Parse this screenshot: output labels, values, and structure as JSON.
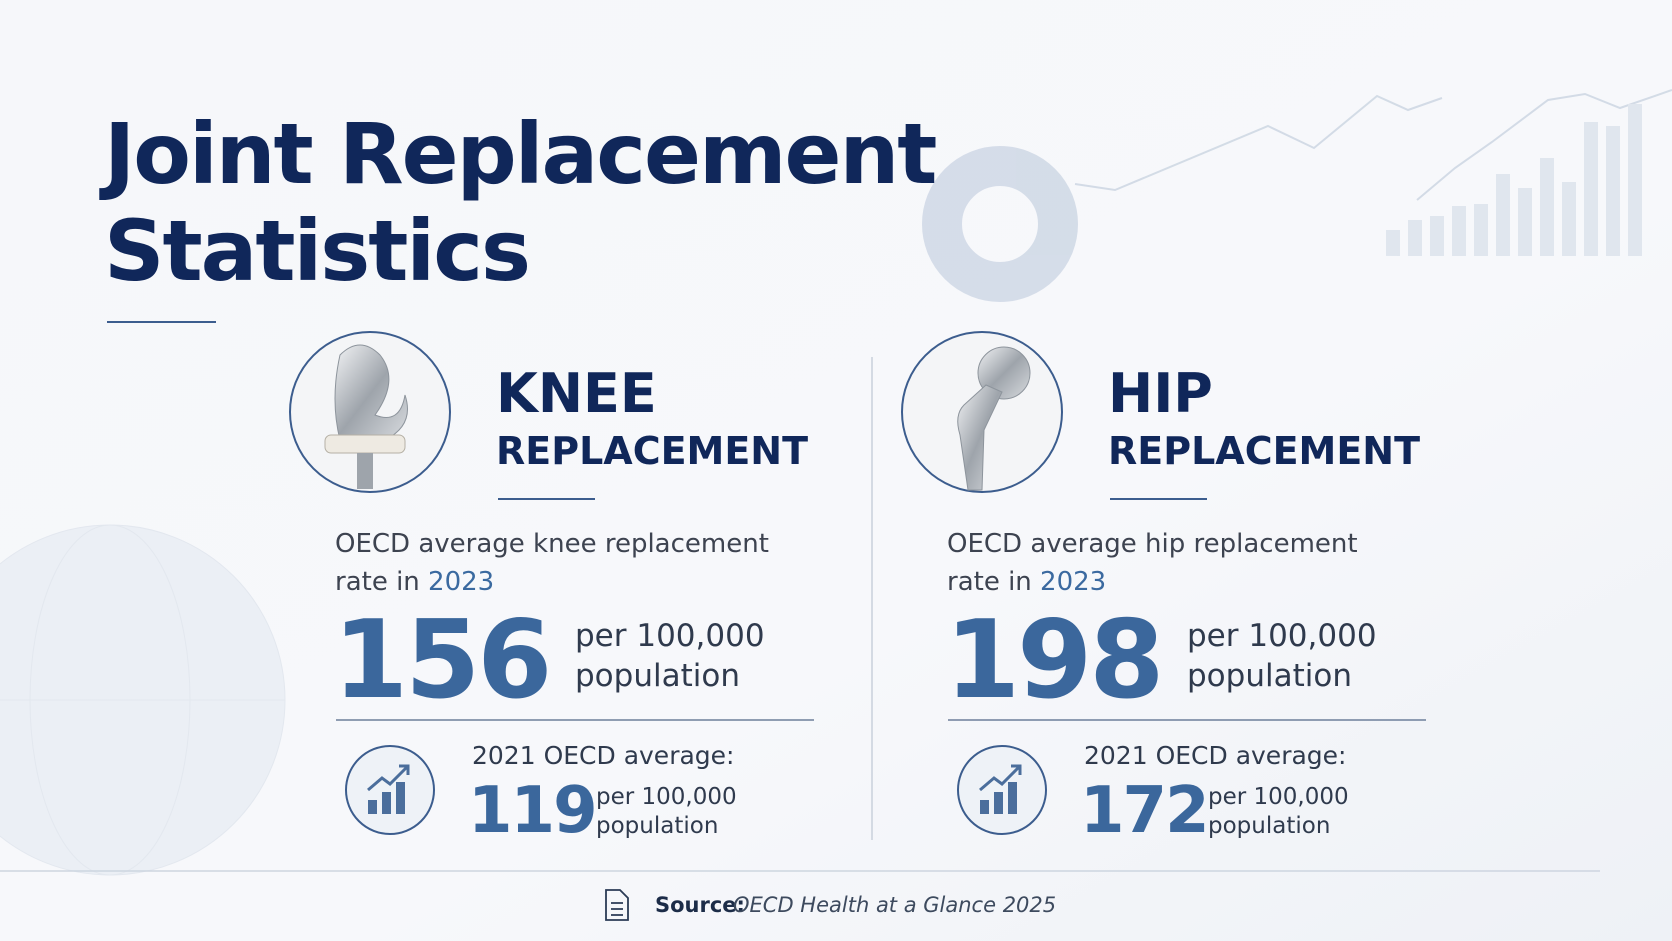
{
  "header": {
    "title_lines": [
      "Joint Replacement",
      "Statistics"
    ]
  },
  "sections": [
    {
      "name": "KNEE",
      "subtitle": "REPLACEMENT",
      "description": [
        "OECD average knee replacement",
        "rate in"
      ],
      "year": "2023",
      "value": "156",
      "unit": [
        "per 100,000",
        "population"
      ],
      "prior_label": "2021 OECD average:",
      "prior_value": "119",
      "prior_unit": [
        "per 100,000",
        "population"
      ]
    },
    {
      "name": "HIP",
      "subtitle": "REPLACEMENT",
      "description": [
        "OECD average hip replacement",
        "rate in"
      ],
      "year": "2023",
      "value": "198",
      "unit": [
        "per 100,000",
        "population"
      ],
      "prior_label": "2021 OECD average:",
      "prior_value": "172",
      "prior_unit": [
        "per 100,000",
        "population"
      ]
    }
  ],
  "footer": {
    "source_label": "Source:",
    "source_text": "OECD Health at a Glance 2025"
  }
}
